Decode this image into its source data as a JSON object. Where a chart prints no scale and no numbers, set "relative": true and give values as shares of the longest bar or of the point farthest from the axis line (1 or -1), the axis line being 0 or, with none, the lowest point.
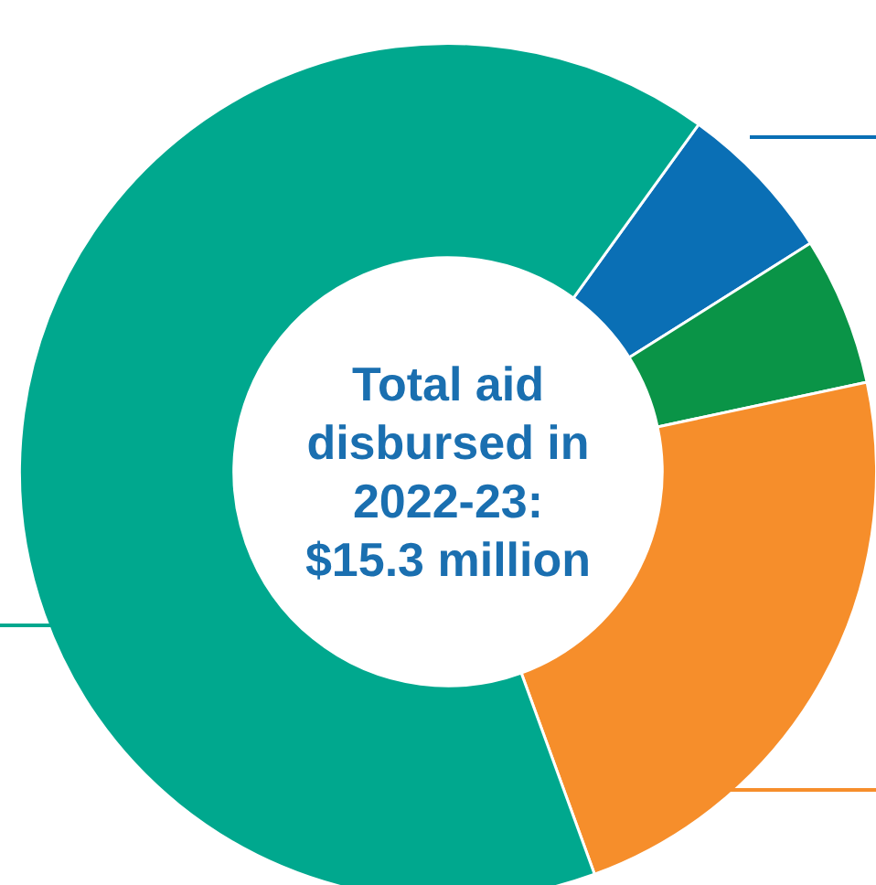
{
  "chart_data": {
    "type": "donut",
    "relative": true,
    "categories": [
      null,
      null,
      null,
      null
    ],
    "values": [
      6.1,
      5.6,
      22.8,
      65.5
    ],
    "colors": [
      "#0a6fb5",
      "#0a9447",
      "#f68e2b",
      "#00a88e"
    ],
    "annotations": [
      "Total aid disbursed in 2022-23: $15.3 million"
    ],
    "legend": false
  }
}
